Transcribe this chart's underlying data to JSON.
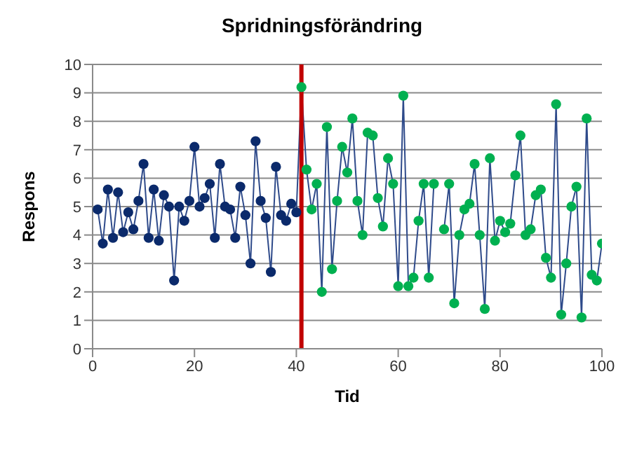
{
  "chart_data": {
    "type": "line",
    "title": "Spridningsförändring",
    "xlabel": "Tid",
    "ylabel": "Respons",
    "xlim": [
      0,
      100
    ],
    "xticks": [
      0,
      20,
      40,
      60,
      80,
      100
    ],
    "ylim": [
      0,
      10
    ],
    "yticks": [
      0,
      1,
      2,
      3,
      4,
      5,
      6,
      7,
      8,
      9,
      10
    ],
    "grid": "y",
    "series": [
      {
        "type": "line",
        "color": "#2e4a8a",
        "marker": "none",
        "x": [
          1,
          2,
          3,
          4,
          5,
          6,
          7,
          8,
          9,
          10,
          11,
          12,
          13,
          14,
          15,
          16,
          17,
          18,
          19,
          20,
          21,
          22,
          23,
          24,
          25,
          26,
          27,
          28,
          29,
          30,
          31,
          32,
          33,
          34,
          35,
          36,
          37,
          38,
          39,
          40,
          41,
          42,
          43,
          44,
          45,
          46,
          47,
          48,
          49,
          50,
          51,
          52,
          53,
          54,
          55,
          56,
          57,
          58,
          59,
          60,
          61,
          62,
          63,
          64,
          65,
          66,
          67,
          68,
          69,
          70,
          71,
          72,
          73,
          74,
          75,
          76,
          77,
          78,
          79,
          80,
          81,
          82,
          83,
          84,
          85,
          86,
          87,
          88,
          89,
          90,
          91,
          92,
          93,
          94,
          95,
          96,
          97,
          98,
          99,
          100
        ],
        "values": [
          4.9,
          3.7,
          5.6,
          3.9,
          5.5,
          4.1,
          4.8,
          4.2,
          5.2,
          6.5,
          3.9,
          5.6,
          3.8,
          5.4,
          5.0,
          2.4,
          5.0,
          4.5,
          5.2,
          7.1,
          5.0,
          5.3,
          5.8,
          3.9,
          6.5,
          5.0,
          4.9,
          3.9,
          5.7,
          4.7,
          3.0,
          7.3,
          5.2,
          4.6,
          2.7,
          6.4,
          4.7,
          4.5,
          5.1,
          4.8,
          9.2,
          6.3,
          4.9,
          5.8,
          2.0,
          7.8,
          2.8,
          5.2,
          7.1,
          6.2,
          8.1,
          5.2,
          4.0,
          7.6,
          7.5,
          5.3,
          4.3,
          6.7,
          5.8,
          2.2,
          8.9,
          2.2,
          2.5,
          4.5,
          5.8,
          2.5,
          5.8,
          null,
          4.2,
          5.8,
          1.6,
          4.0,
          4.9,
          5.1,
          6.5,
          4.0,
          1.4,
          6.7,
          3.8,
          4.5,
          4.1,
          4.4,
          6.1,
          7.5,
          4.0,
          4.2,
          5.4,
          5.6,
          3.2,
          2.5,
          8.6,
          1.2,
          3.0,
          5.0,
          5.7,
          1.1,
          8.1,
          2.6,
          2.4,
          3.7
        ]
      },
      {
        "type": "scatter",
        "color": "#0b2a6b",
        "marker": "circle",
        "x": [
          1,
          2,
          3,
          4,
          5,
          6,
          7,
          8,
          9,
          10,
          11,
          12,
          13,
          14,
          15,
          16,
          17,
          18,
          19,
          20,
          21,
          22,
          23,
          24,
          25,
          26,
          27,
          28,
          29,
          30,
          31,
          32,
          33,
          34,
          35,
          36,
          37,
          38,
          39,
          40
        ],
        "values": [
          4.9,
          3.7,
          5.6,
          3.9,
          5.5,
          4.1,
          4.8,
          4.2,
          5.2,
          6.5,
          3.9,
          5.6,
          3.8,
          5.4,
          5.0,
          2.4,
          5.0,
          4.5,
          5.2,
          7.1,
          5.0,
          5.3,
          5.8,
          3.9,
          6.5,
          5.0,
          4.9,
          3.9,
          5.7,
          4.7,
          3.0,
          7.3,
          5.2,
          4.6,
          2.7,
          6.4,
          4.7,
          4.5,
          5.1,
          4.8
        ]
      },
      {
        "type": "scatter",
        "color": "#00b050",
        "marker": "circle",
        "x": [
          41,
          42,
          43,
          44,
          45,
          46,
          47,
          48,
          49,
          50,
          51,
          52,
          53,
          54,
          55,
          56,
          57,
          58,
          59,
          60,
          61,
          62,
          63,
          64,
          65,
          66,
          67,
          68,
          69,
          70,
          71,
          72,
          73,
          74,
          75,
          76,
          77,
          78,
          79,
          80,
          81,
          82,
          83,
          84,
          85,
          86,
          87,
          88,
          89,
          90,
          91,
          92,
          93,
          94,
          95,
          96,
          97,
          98,
          99,
          100
        ],
        "values": [
          9.2,
          6.3,
          4.9,
          5.8,
          2.0,
          7.8,
          2.8,
          5.2,
          7.1,
          6.2,
          8.1,
          5.2,
          4.0,
          7.6,
          7.5,
          5.3,
          4.3,
          6.7,
          5.8,
          2.2,
          8.9,
          2.2,
          2.5,
          4.5,
          5.8,
          2.5,
          5.8,
          null,
          4.2,
          5.8,
          1.6,
          4.0,
          4.9,
          5.1,
          6.5,
          4.0,
          1.4,
          6.7,
          3.8,
          4.5,
          4.1,
          4.4,
          6.1,
          7.5,
          4.0,
          4.2,
          5.4,
          5.6,
          3.2,
          2.5,
          8.6,
          1.2,
          3.0,
          5.0,
          5.7,
          1.1,
          8.1,
          2.6,
          2.4,
          3.7
        ]
      }
    ],
    "ref_lines": [
      {
        "axis": "x",
        "value": 41,
        "color": "#c00000"
      }
    ]
  }
}
